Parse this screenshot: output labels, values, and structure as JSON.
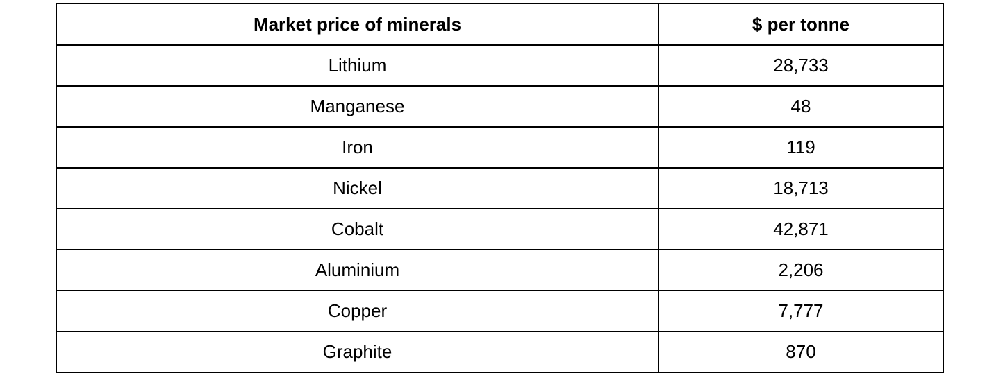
{
  "table": {
    "header": [
      "Market price of minerals",
      "$ per tonne"
    ],
    "rows": [
      [
        "Lithium",
        "28,733"
      ],
      [
        "Manganese",
        "48"
      ],
      [
        "Iron",
        "119"
      ],
      [
        "Nickel",
        "18,713"
      ],
      [
        "Cobalt",
        "42,871"
      ],
      [
        "Aluminium",
        "2,206"
      ],
      [
        "Copper",
        "7,777"
      ],
      [
        "Graphite",
        "870"
      ]
    ]
  }
}
